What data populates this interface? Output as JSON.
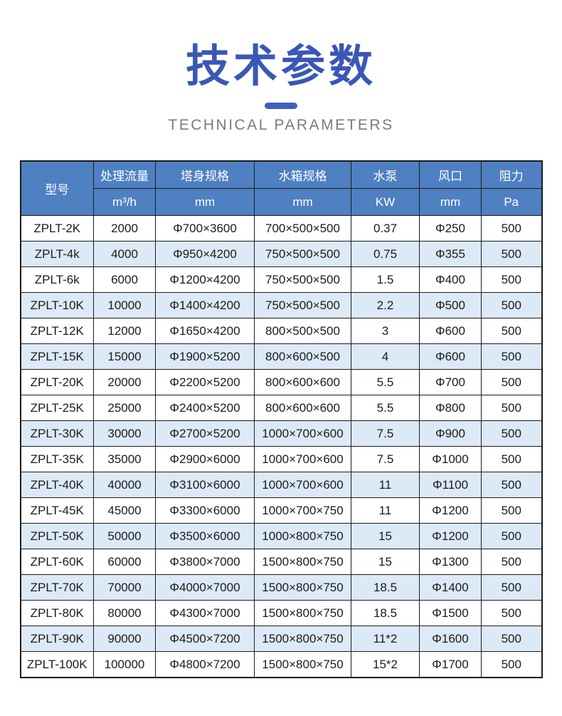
{
  "title": {
    "zh": "技术参数",
    "en": "TECHNICAL PARAMETERS"
  },
  "colors": {
    "title_blue": "#3a57b5",
    "underline_blue": "#3f60be",
    "subtitle_gray": "#7b7b7b",
    "header_blue": "#4e80c2",
    "row_highlight_blue": "#dce9f6",
    "border_black": "#1c1c1c"
  },
  "table": {
    "model_header": "型号",
    "columns": [
      {
        "label": "处理流量",
        "unit": "m³/h"
      },
      {
        "label": "塔身规格",
        "unit": "mm"
      },
      {
        "label": "水箱规格",
        "unit": "mm"
      },
      {
        "label": "水泵",
        "unit": "KW"
      },
      {
        "label": "风口",
        "unit": "mm"
      },
      {
        "label": "阻力",
        "unit": "Pa"
      }
    ],
    "rows": [
      {
        "model": "ZPLT-2K",
        "values": [
          "2000",
          "Φ700×3600",
          "700×500×500",
          "0.37",
          "Φ250",
          "500"
        ],
        "highlight": false
      },
      {
        "model": "ZPLT-4k",
        "values": [
          "4000",
          "Φ950×4200",
          "750×500×500",
          "0.75",
          "Φ355",
          "500"
        ],
        "highlight": true
      },
      {
        "model": "ZPLT-6k",
        "values": [
          "6000",
          "Φ1200×4200",
          "750×500×500",
          "1.5",
          "Φ400",
          "500"
        ],
        "highlight": false
      },
      {
        "model": "ZPLT-10K",
        "values": [
          "10000",
          "Φ1400×4200",
          "750×500×500",
          "2.2",
          "Φ500",
          "500"
        ],
        "highlight": true
      },
      {
        "model": "ZPLT-12K",
        "values": [
          "12000",
          "Φ1650×4200",
          "800×500×500",
          "3",
          "Φ600",
          "500"
        ],
        "highlight": false
      },
      {
        "model": "ZPLT-15K",
        "values": [
          "15000",
          "Φ1900×5200",
          "800×600×500",
          "4",
          "Φ600",
          "500"
        ],
        "highlight": true
      },
      {
        "model": "ZPLT-20K",
        "values": [
          "20000",
          "Φ2200×5200",
          "800×600×600",
          "5.5",
          "Φ700",
          "500"
        ],
        "highlight": false
      },
      {
        "model": "ZPLT-25K",
        "values": [
          "25000",
          "Φ2400×5200",
          "800×600×600",
          "5.5",
          "Φ800",
          "500"
        ],
        "highlight": false
      },
      {
        "model": "ZPLT-30K",
        "values": [
          "30000",
          "Φ2700×5200",
          "1000×700×600",
          "7.5",
          "Φ900",
          "500"
        ],
        "highlight": true
      },
      {
        "model": "ZPLT-35K",
        "values": [
          "35000",
          "Φ2900×6000",
          "1000×700×600",
          "7.5",
          "Φ1000",
          "500"
        ],
        "highlight": false
      },
      {
        "model": "ZPLT-40K",
        "values": [
          "40000",
          "Φ3100×6000",
          "1000×700×600",
          "11",
          "Φ1100",
          "500"
        ],
        "highlight": true
      },
      {
        "model": "ZPLT-45K",
        "values": [
          "45000",
          "Φ3300×6000",
          "1000×700×750",
          "11",
          "Φ1200",
          "500"
        ],
        "highlight": false
      },
      {
        "model": "ZPLT-50K",
        "values": [
          "50000",
          "Φ3500×6000",
          "1000×800×750",
          "15",
          "Φ1200",
          "500"
        ],
        "highlight": true
      },
      {
        "model": "ZPLT-60K",
        "values": [
          "60000",
          "Φ3800×7000",
          "1500×800×750",
          "15",
          "Φ1300",
          "500"
        ],
        "highlight": false
      },
      {
        "model": "ZPLT-70K",
        "values": [
          "70000",
          "Φ4000×7000",
          "1500×800×750",
          "18.5",
          "Φ1400",
          "500"
        ],
        "highlight": true
      },
      {
        "model": "ZPLT-80K",
        "values": [
          "80000",
          "Φ4300×7000",
          "1500×800×750",
          "18.5",
          "Φ1500",
          "500"
        ],
        "highlight": false
      },
      {
        "model": "ZPLT-90K",
        "values": [
          "90000",
          "Φ4500×7200",
          "1500×800×750",
          "11*2",
          "Φ1600",
          "500"
        ],
        "highlight": true
      },
      {
        "model": "ZPLT-100K",
        "values": [
          "100000",
          "Φ4800×7200",
          "1500×800×750",
          "15*2",
          "Φ1700",
          "500"
        ],
        "highlight": false
      }
    ]
  }
}
